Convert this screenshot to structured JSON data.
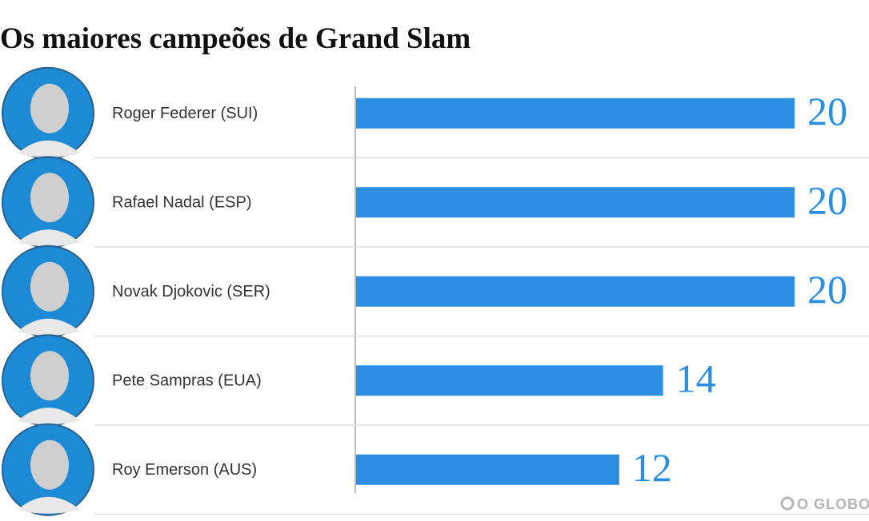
{
  "chart_data": {
    "type": "bar",
    "orientation": "horizontal",
    "title": "Os maiores campeões de Grand Slam",
    "categories": [
      "Roger Federer (SUI)",
      "Rafael Nadal (ESP)",
      "Novak Djokovic (SER)",
      "Pete Sampras (EUA)",
      "Roy Emerson (AUS)"
    ],
    "values": [
      20,
      20,
      20,
      14,
      12
    ],
    "color": "#2b8ee3",
    "xlim": [
      0,
      20
    ],
    "source": "O GLOBO"
  }
}
